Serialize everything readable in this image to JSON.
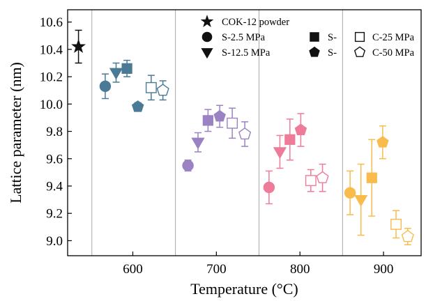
{
  "chart_data": {
    "type": "scatter",
    "xlabel": "Temperature (°C)",
    "ylabel": "Lattice parameter (nm)",
    "xlim": [
      522,
      945
    ],
    "ylim": [
      8.89,
      10.69
    ],
    "xticks": [
      600,
      700,
      800,
      900
    ],
    "yticks": [
      9.0,
      9.2,
      9.4,
      9.6,
      9.8,
      10.0,
      10.2,
      10.4,
      10.6
    ],
    "xtick_labels": [
      "600",
      "700",
      "800",
      "900"
    ],
    "ytick_labels": [
      "9.0",
      "9.2",
      "9.4",
      "9.6",
      "9.8",
      "10.0",
      "10.2",
      "10.4",
      "10.6"
    ],
    "group_separators_x": [
      551,
      651,
      751,
      851
    ],
    "legend_position": "top-right",
    "legend": [
      {
        "label": "COK-12 powder",
        "marker": "star",
        "filled": true
      },
      {
        "label": "S-2.5 MPa",
        "marker": "circle",
        "filled": true
      },
      {
        "label": "S-12.5 MPa",
        "marker": "triangle-down",
        "filled": true
      },
      {
        "label": "S-",
        "marker": "square",
        "filled": true
      },
      {
        "label": "S-",
        "marker": "pentagon",
        "filled": true
      },
      {
        "label": "C-25 MPa",
        "marker": "square",
        "filled": false
      },
      {
        "label": "C-50 MPa",
        "marker": "pentagon",
        "filled": false
      }
    ],
    "colors": {
      "powder": "#111111",
      "600": "#4a7a95",
      "700": "#9b82c3",
      "800": "#ee7b98",
      "900": "#f9bb4b"
    },
    "points": [
      {
        "x": 535,
        "y": 10.42,
        "err": 0.12,
        "marker": "star",
        "filled": true,
        "group": "powder"
      },
      {
        "x": 567,
        "y": 10.13,
        "err": 0.09,
        "marker": "circle",
        "filled": true,
        "group": "600"
      },
      {
        "x": 580,
        "y": 10.23,
        "err": 0.07,
        "marker": "triangle-down",
        "filled": true,
        "group": "600"
      },
      {
        "x": 593,
        "y": 10.26,
        "err": 0.06,
        "marker": "square",
        "filled": true,
        "group": "600"
      },
      {
        "x": 606,
        "y": 9.98,
        "err": 0.03,
        "marker": "pentagon",
        "filled": true,
        "group": "600"
      },
      {
        "x": 622,
        "y": 10.12,
        "err": 0.09,
        "marker": "square",
        "filled": false,
        "group": "600"
      },
      {
        "x": 636,
        "y": 10.1,
        "err": 0.07,
        "marker": "pentagon",
        "filled": false,
        "group": "600"
      },
      {
        "x": 666,
        "y": 9.55,
        "err": 0.04,
        "marker": "circle",
        "filled": true,
        "group": "700"
      },
      {
        "x": 678,
        "y": 9.72,
        "err": 0.07,
        "marker": "triangle-down",
        "filled": true,
        "group": "700"
      },
      {
        "x": 690,
        "y": 9.88,
        "err": 0.08,
        "marker": "square",
        "filled": true,
        "group": "700"
      },
      {
        "x": 704,
        "y": 9.91,
        "err": 0.08,
        "marker": "pentagon",
        "filled": true,
        "group": "700"
      },
      {
        "x": 719,
        "y": 9.86,
        "err": 0.11,
        "marker": "square",
        "filled": false,
        "group": "700"
      },
      {
        "x": 734,
        "y": 9.78,
        "err": 0.09,
        "marker": "pentagon",
        "filled": false,
        "group": "700"
      },
      {
        "x": 763,
        "y": 9.39,
        "err": 0.12,
        "marker": "circle",
        "filled": true,
        "group": "800"
      },
      {
        "x": 776,
        "y": 9.65,
        "err": 0.12,
        "marker": "triangle-down",
        "filled": true,
        "group": "800"
      },
      {
        "x": 788,
        "y": 9.74,
        "err": 0.15,
        "marker": "square",
        "filled": true,
        "group": "800"
      },
      {
        "x": 801,
        "y": 9.81,
        "err": 0.12,
        "marker": "pentagon",
        "filled": true,
        "group": "800"
      },
      {
        "x": 813,
        "y": 9.44,
        "err": 0.08,
        "marker": "square",
        "filled": false,
        "group": "800"
      },
      {
        "x": 827,
        "y": 9.46,
        "err": 0.1,
        "marker": "pentagon",
        "filled": false,
        "group": "800"
      },
      {
        "x": 860,
        "y": 9.35,
        "err": 0.16,
        "marker": "circle",
        "filled": true,
        "group": "900"
      },
      {
        "x": 873,
        "y": 9.3,
        "err": 0.26,
        "marker": "triangle-down",
        "filled": true,
        "group": "900"
      },
      {
        "x": 886,
        "y": 9.46,
        "err": 0.28,
        "marker": "square",
        "filled": true,
        "group": "900"
      },
      {
        "x": 899,
        "y": 9.72,
        "err": 0.12,
        "marker": "pentagon",
        "filled": true,
        "group": "900"
      },
      {
        "x": 915,
        "y": 9.12,
        "err": 0.1,
        "marker": "square",
        "filled": false,
        "group": "900"
      },
      {
        "x": 929,
        "y": 9.03,
        "err": 0.06,
        "marker": "pentagon",
        "filled": false,
        "group": "900"
      }
    ]
  }
}
